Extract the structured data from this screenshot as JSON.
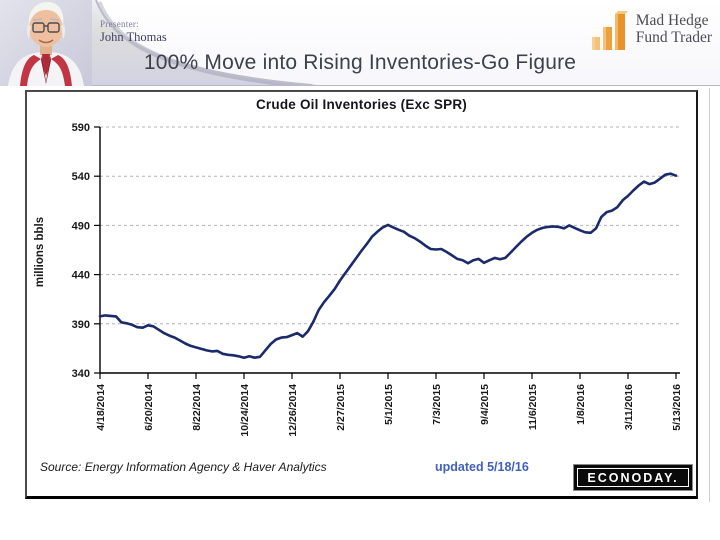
{
  "header": {
    "presenter_label": "Presenter:",
    "presenter_name": "John Thomas",
    "brand_line1": "Mad Hedge",
    "brand_line2": "Fund Trader",
    "title": "100% Move into Rising Inventories-Go Figure"
  },
  "chart_data": {
    "type": "line",
    "title": "Crude Oil Inventories (Exc SPR)",
    "xlabel": "",
    "ylabel": "millions bbls",
    "ylim": [
      340,
      590
    ],
    "yticks": [
      340,
      390,
      440,
      490,
      540,
      590
    ],
    "grid": "horizontal-dashed",
    "legend_position": "none",
    "weeks_per_tick": 9,
    "xtick_labels": [
      "4/18/2014",
      "6/20/2014",
      "8/22/2014",
      "10/24/2014",
      "12/26/2014",
      "2/27/2015",
      "5/1/2015",
      "7/3/2015",
      "9/4/2015",
      "11/6/2015",
      "1/8/2016",
      "3/11/2016",
      "5/13/2016"
    ],
    "series": [
      {
        "name": "Crude Oil Inventories (Exc SPR)",
        "color": "#1b2a6b",
        "values": [
          397.5,
          398.5,
          398,
          397.5,
          391.5,
          390.5,
          389,
          386.5,
          386,
          388.5,
          387.5,
          384,
          380.5,
          378,
          376,
          373,
          370,
          367.5,
          366,
          364.5,
          363,
          362,
          362.5,
          359.5,
          358.5,
          358,
          357,
          355.5,
          357,
          355.5,
          356.5,
          363,
          369.5,
          374,
          376,
          376.5,
          378.5,
          380.5,
          377,
          382.5,
          392,
          404,
          412,
          418.5,
          425.5,
          434,
          441.5,
          449,
          456.5,
          464,
          471,
          478.5,
          483.5,
          488,
          490.5,
          488,
          485.5,
          483.5,
          479.5,
          477,
          473.5,
          469.5,
          466,
          465.5,
          466,
          463,
          459.5,
          456,
          454.5,
          451.5,
          454.5,
          456,
          452,
          454.5,
          457,
          455.5,
          457,
          462.5,
          468,
          473.5,
          478.5,
          482.5,
          485.5,
          487.5,
          488.5,
          489,
          488.5,
          487,
          490,
          487.5,
          485,
          483,
          482.5,
          487,
          498.5,
          503.5,
          505,
          508.5,
          515.5,
          520,
          525.5,
          530.5,
          534.5,
          532,
          533.5,
          537.5,
          541.5,
          542.5,
          540.5
        ]
      }
    ]
  },
  "footer": {
    "source": "Source: Energy Information Agency & Haver Analytics",
    "updated": "updated 5/18/16",
    "brand": "ECONODAY."
  },
  "icons": {
    "presenter_photo": "presenter-photo",
    "brand_logo": "bar-chart-logo-icon"
  },
  "colors": {
    "line_navy": "#1b2a6b",
    "updated_blue": "#4060c0",
    "logo_orange": "#e8932a",
    "header_lavender": "#d2d2e2",
    "econoday_bg": "#0a0a0a"
  }
}
